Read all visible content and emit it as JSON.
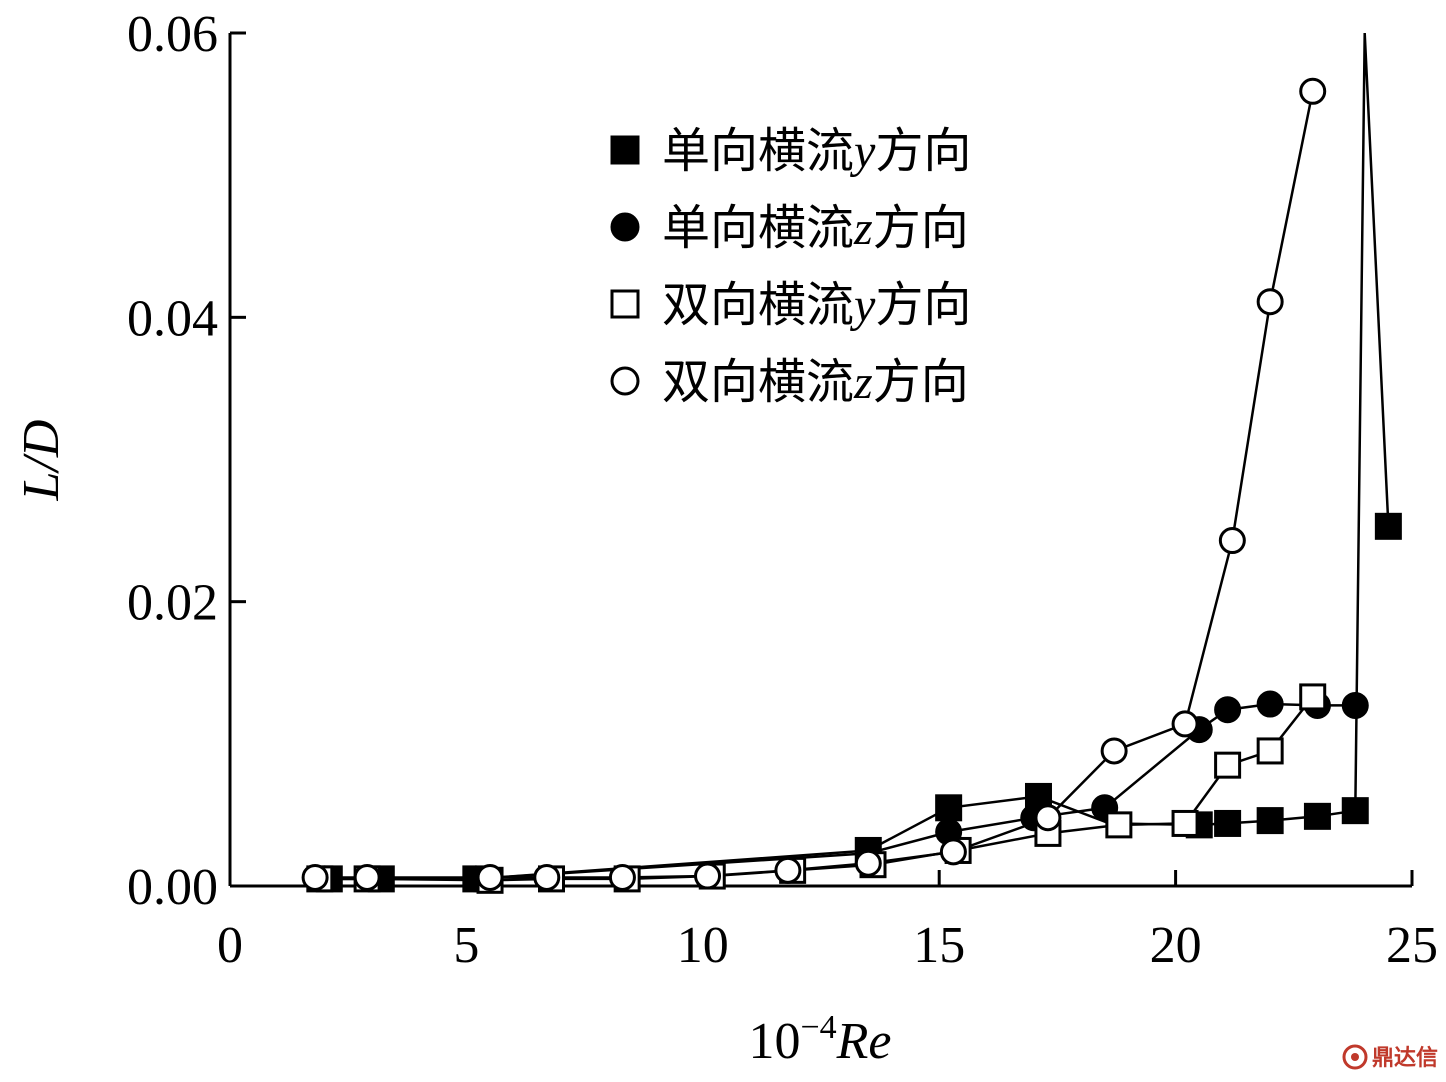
{
  "chart_data": {
    "type": "line",
    "xlim": [
      0,
      25
    ],
    "ylim": [
      0,
      0.06
    ],
    "x_ticks": [
      {
        "value": 0,
        "label": "0"
      },
      {
        "value": 5,
        "label": "5"
      },
      {
        "value": 10,
        "label": "10"
      },
      {
        "value": 15,
        "label": "15"
      },
      {
        "value": 20,
        "label": "20"
      },
      {
        "value": 25,
        "label": "25"
      }
    ],
    "y_ticks": [
      {
        "value": 0,
        "label": "0.00"
      },
      {
        "value": 0.02,
        "label": "0.02"
      },
      {
        "value": 0.04,
        "label": "0.04"
      },
      {
        "value": 0.06,
        "label": "0.06"
      }
    ],
    "xlabel": {
      "prefix": "10",
      "exponent": "−4",
      "var": "Re"
    },
    "ylabel": "L/D",
    "legend_position": "top-center",
    "series": [
      {
        "name_prefix": "单向横流",
        "name_var": "y",
        "name_suffix": "方向",
        "marker": "square-filled",
        "x": [
          2.1,
          3.2,
          5.2,
          13.5,
          15.2,
          17.1,
          18.6,
          20.5,
          21.1,
          22.0,
          23.0,
          23.8,
          24.0,
          24.5
        ],
        "y": [
          0.0005,
          0.0005,
          0.0005,
          0.0025,
          0.0055,
          0.0063,
          0.0044,
          0.0043,
          0.0044,
          0.0046,
          0.0049,
          0.0053,
          0.06,
          0.0253
        ],
        "markers_at": [
          0,
          1,
          2,
          3,
          4,
          5,
          7,
          8,
          9,
          10,
          11,
          13
        ]
      },
      {
        "name_prefix": "单向横流",
        "name_var": "z",
        "name_suffix": "方向",
        "marker": "circle-filled",
        "x": [
          2.0,
          5.2,
          13.5,
          15.2,
          17.0,
          18.5,
          20.5,
          21.1,
          22.0,
          23.0,
          23.8
        ],
        "y": [
          0.0005,
          0.0005,
          0.0023,
          0.0038,
          0.0048,
          0.0055,
          0.011,
          0.0124,
          0.0128,
          0.0127,
          0.0127
        ]
      },
      {
        "name_prefix": "双向横流",
        "name_var": "y",
        "name_suffix": "方向",
        "marker": "square-open",
        "x": [
          1.9,
          2.9,
          5.5,
          6.8,
          8.4,
          10.2,
          11.9,
          13.6,
          15.4,
          17.3,
          18.8,
          20.2,
          21.1,
          22.0,
          22.9
        ],
        "y": [
          0.0005,
          0.0005,
          0.0004,
          0.0005,
          0.0005,
          0.0007,
          0.0011,
          0.0015,
          0.0025,
          0.0037,
          0.0043,
          0.0044,
          0.0085,
          0.0095,
          0.0133
        ]
      },
      {
        "name_prefix": "双向横流",
        "name_var": "z",
        "name_suffix": "方向",
        "marker": "circle-open",
        "x": [
          1.8,
          2.9,
          5.5,
          6.7,
          8.3,
          10.1,
          11.8,
          13.5,
          15.3,
          17.3,
          18.7,
          20.2,
          21.2,
          22.0,
          22.9
        ],
        "y": [
          0.0006,
          0.0006,
          0.0006,
          0.0006,
          0.0006,
          0.0007,
          0.0011,
          0.0016,
          0.0024,
          0.0048,
          0.0095,
          0.0114,
          0.0243,
          0.0411,
          0.0559
        ]
      }
    ]
  },
  "watermark": {
    "text": "鼎达信"
  }
}
